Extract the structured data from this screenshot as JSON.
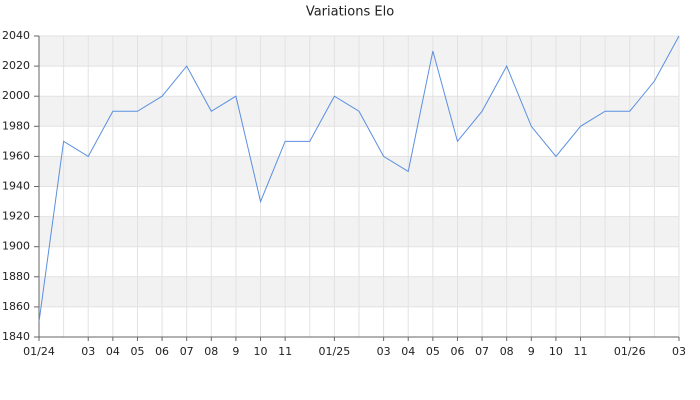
{
  "chart_data": {
    "type": "line",
    "title": "Variations Elo",
    "categories": [
      "01/24",
      null,
      "03",
      "04",
      "05",
      "06",
      "07",
      "08",
      "9",
      "10",
      "11",
      null,
      "01/25",
      null,
      "03",
      "04",
      "05",
      "06",
      "07",
      "08",
      "9",
      "10",
      "11",
      null,
      "01/26",
      null,
      "03"
    ],
    "series": [
      {
        "color": "#5b8fe0",
        "values": [
          1850,
          1970,
          1960,
          1990,
          1990,
          2000,
          2020,
          1990,
          2000,
          1930,
          1970,
          1970,
          2000,
          1990,
          1960,
          1950,
          2030,
          1970,
          1990,
          2020,
          1980,
          1960,
          1980,
          1990,
          1990,
          2010,
          2040
        ]
      }
    ],
    "ylim": [
      1840,
      2040
    ],
    "yticks": [
      1840,
      1860,
      1880,
      1900,
      1920,
      1940,
      1960,
      1980,
      2000,
      2020,
      2040
    ],
    "grid": true
  }
}
